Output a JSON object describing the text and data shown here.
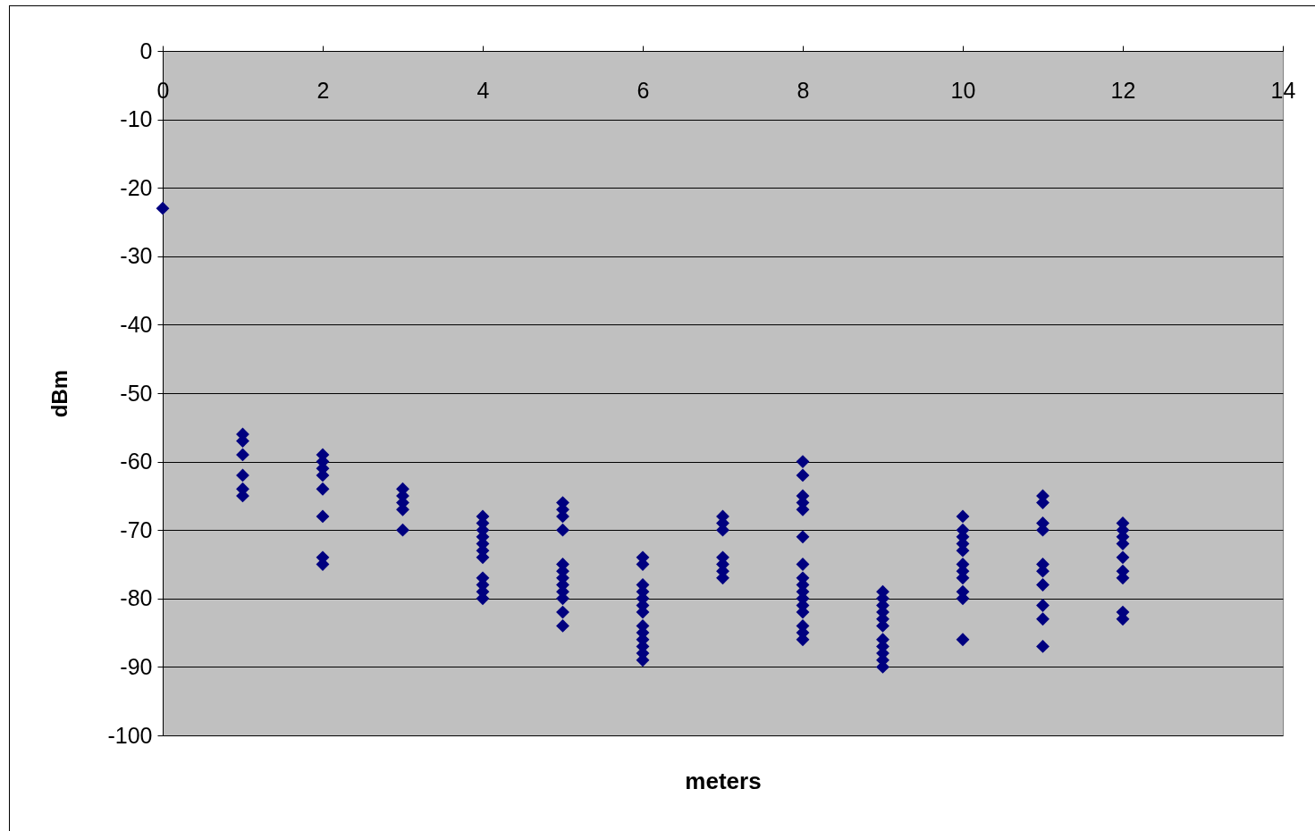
{
  "chart_data": {
    "type": "scatter",
    "xlabel": "meters",
    "ylabel": "dBm",
    "x": [
      0,
      1,
      1,
      1,
      1,
      1,
      1,
      2,
      2,
      2,
      2,
      2,
      2,
      2,
      2,
      3,
      3,
      3,
      3,
      3,
      4,
      4,
      4,
      4,
      4,
      4,
      4,
      4,
      4,
      4,
      4,
      5,
      5,
      5,
      5,
      5,
      5,
      5,
      5,
      5,
      5,
      5,
      5,
      6,
      6,
      6,
      6,
      6,
      6,
      6,
      6,
      6,
      6,
      6,
      6,
      6,
      7,
      7,
      7,
      7,
      7,
      7,
      7,
      8,
      8,
      8,
      8,
      8,
      8,
      8,
      8,
      8,
      8,
      8,
      8,
      8,
      8,
      8,
      8,
      9,
      9,
      9,
      9,
      9,
      9,
      9,
      9,
      9,
      9,
      9,
      10,
      10,
      10,
      10,
      10,
      10,
      10,
      10,
      10,
      10,
      10,
      11,
      11,
      11,
      11,
      11,
      11,
      11,
      11,
      11,
      11,
      12,
      12,
      12,
      12,
      12,
      12,
      12,
      12,
      12
    ],
    "series": [
      {
        "color": "#000080",
        "values": [
          -23,
          -56,
          -57,
          -59,
          -62,
          -64,
          -65,
          -59,
          -60,
          -61,
          -62,
          -64,
          -68,
          -74,
          -75,
          -64,
          -65,
          -66,
          -67,
          -70,
          -68,
          -69,
          -70,
          -71,
          -72,
          -73,
          -74,
          -77,
          -78,
          -79,
          -80,
          -66,
          -67,
          -68,
          -70,
          -75,
          -76,
          -77,
          -78,
          -79,
          -80,
          -82,
          -84,
          -74,
          -75,
          -78,
          -79,
          -80,
          -81,
          -82,
          -84,
          -85,
          -86,
          -87,
          -88,
          -89,
          -68,
          -69,
          -70,
          -74,
          -75,
          -76,
          -77,
          -60,
          -62,
          -65,
          -66,
          -67,
          -71,
          -75,
          -77,
          -78,
          -79,
          -80,
          -81,
          -82,
          -84,
          -85,
          -86,
          -79,
          -80,
          -81,
          -82,
          -83,
          -84,
          -86,
          -87,
          -88,
          -89,
          -90,
          -68,
          -70,
          -71,
          -72,
          -73,
          -75,
          -76,
          -77,
          -79,
          -80,
          -86,
          -65,
          -66,
          -69,
          -70,
          -75,
          -76,
          -78,
          -81,
          -83,
          -87,
          -69,
          -70,
          -71,
          -72,
          -74,
          -76,
          -77,
          -82,
          -83
        ]
      }
    ],
    "xlim": [
      0,
      14
    ],
    "xticks": [
      0,
      2,
      4,
      6,
      8,
      10,
      12,
      14
    ],
    "ylim": [
      -100,
      0
    ],
    "yticks": [
      -100,
      -90,
      -80,
      -70,
      -60,
      -50,
      -40,
      -30,
      -20,
      -10,
      0
    ],
    "grid": "y",
    "marker": "diamond",
    "legend": false
  }
}
